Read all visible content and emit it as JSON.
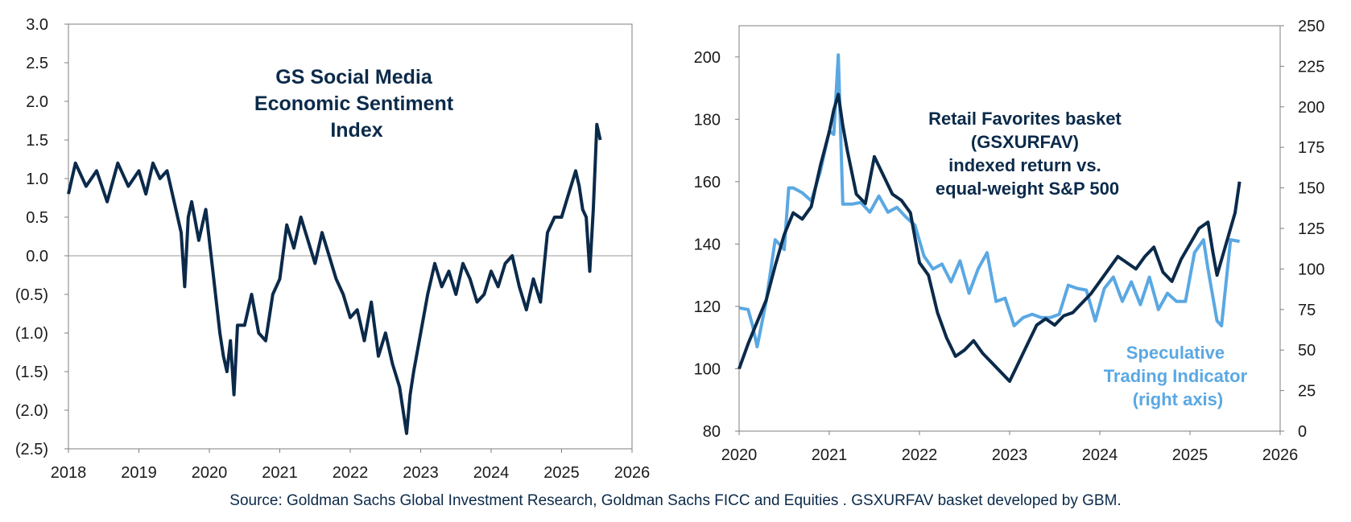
{
  "chart_data": [
    {
      "type": "line",
      "title": "",
      "annotation": [
        "GS Social Media",
        "Economic Sentiment",
        "Index"
      ],
      "x_tick_labels": [
        "2018",
        "2019",
        "2020",
        "2021",
        "2022",
        "2023",
        "2024",
        "2025",
        "2026"
      ],
      "y_tick_labels": [
        "3.0",
        "2.5",
        "2.0",
        "1.5",
        "1.0",
        "0.5",
        "0.0",
        "(0.5)",
        "(1.0)",
        "(1.5)",
        "(2.0)",
        "(2.5)"
      ],
      "xlim": [
        2018,
        2026
      ],
      "ylim": [
        -2.5,
        3.0
      ],
      "grid": false,
      "colors": {
        "series": "#0b2a4a",
        "zero_line": "#999999"
      },
      "series": [
        {
          "x": [
            2018.0,
            2018.1,
            2018.25,
            2018.4,
            2018.55,
            2018.7,
            2018.85,
            2019.0,
            2019.1,
            2019.2,
            2019.3,
            2019.4,
            2019.5,
            2019.6,
            2019.65,
            2019.7,
            2019.75,
            2019.85,
            2019.95,
            2020.05,
            2020.15,
            2020.2,
            2020.25,
            2020.3,
            2020.35,
            2020.4,
            2020.5,
            2020.6,
            2020.7,
            2020.8,
            2020.9,
            2021.0,
            2021.1,
            2021.2,
            2021.3,
            2021.4,
            2021.5,
            2021.6,
            2021.7,
            2021.8,
            2021.9,
            2022.0,
            2022.1,
            2022.2,
            2022.3,
            2022.4,
            2022.5,
            2022.6,
            2022.7,
            2022.75,
            2022.8,
            2022.85,
            2022.9,
            2023.0,
            2023.1,
            2023.2,
            2023.3,
            2023.4,
            2023.5,
            2023.6,
            2023.7,
            2023.8,
            2023.9,
            2024.0,
            2024.1,
            2024.2,
            2024.3,
            2024.4,
            2024.5,
            2024.6,
            2024.7,
            2024.8,
            2024.9,
            2025.0,
            2025.1,
            2025.2,
            2025.25,
            2025.3,
            2025.35,
            2025.4,
            2025.45,
            2025.5,
            2025.55
          ],
          "values": [
            0.8,
            1.2,
            0.9,
            1.1,
            0.7,
            1.2,
            0.9,
            1.1,
            0.8,
            1.2,
            1.0,
            1.1,
            0.7,
            0.3,
            -0.4,
            0.5,
            0.7,
            0.2,
            0.6,
            -0.2,
            -1.0,
            -1.3,
            -1.5,
            -1.1,
            -1.8,
            -0.9,
            -0.9,
            -0.5,
            -1.0,
            -1.1,
            -0.5,
            -0.3,
            0.4,
            0.1,
            0.5,
            0.2,
            -0.1,
            0.3,
            0.0,
            -0.3,
            -0.5,
            -0.8,
            -0.7,
            -1.1,
            -0.6,
            -1.3,
            -1.0,
            -1.4,
            -1.7,
            -2.0,
            -2.3,
            -1.8,
            -1.5,
            -1.0,
            -0.5,
            -0.1,
            -0.4,
            -0.2,
            -0.5,
            -0.1,
            -0.3,
            -0.6,
            -0.5,
            -0.2,
            -0.4,
            -0.1,
            0.0,
            -0.4,
            -0.7,
            -0.3,
            -0.6,
            0.3,
            0.5,
            0.5,
            0.8,
            1.1,
            0.9,
            0.6,
            0.5,
            -0.2,
            0.6,
            1.7,
            1.5
          ]
        }
      ]
    },
    {
      "type": "line",
      "title": "",
      "x_tick_labels": [
        "2020",
        "2021",
        "2022",
        "2023",
        "2024",
        "2025",
        "2026"
      ],
      "y_left_tick_labels": [
        "80",
        "100",
        "120",
        "140",
        "160",
        "180",
        "200"
      ],
      "y_right_tick_labels": [
        "0",
        "25",
        "50",
        "75",
        "100",
        "125",
        "150",
        "175",
        "200",
        "225",
        "250"
      ],
      "xlim": [
        2020,
        2026
      ],
      "ylim_left": [
        80,
        210
      ],
      "ylim_right": [
        0,
        250
      ],
      "grid": false,
      "annotations": [
        {
          "lines": [
            "Retail Favorites basket",
            "(GSXURFAV)",
            "indexed return vs.",
            "equal-weight S&P 500"
          ],
          "series": 0
        },
        {
          "lines": [
            "Speculative",
            "Trading Indicator",
            "(right axis)"
          ],
          "series": 1
        }
      ],
      "series": [
        {
          "axis": "left",
          "color": "#0b2a4a",
          "x": [
            2020.0,
            2020.1,
            2020.2,
            2020.3,
            2020.4,
            2020.5,
            2020.6,
            2020.7,
            2020.8,
            2020.9,
            2021.0,
            2021.05,
            2021.1,
            2021.15,
            2021.2,
            2021.3,
            2021.4,
            2021.5,
            2021.6,
            2021.7,
            2021.8,
            2021.9,
            2022.0,
            2022.1,
            2022.2,
            2022.3,
            2022.4,
            2022.5,
            2022.6,
            2022.7,
            2022.8,
            2022.9,
            2023.0,
            2023.1,
            2023.2,
            2023.3,
            2023.4,
            2023.5,
            2023.6,
            2023.7,
            2023.8,
            2023.9,
            2024.0,
            2024.1,
            2024.2,
            2024.3,
            2024.4,
            2024.5,
            2024.6,
            2024.7,
            2024.8,
            2024.9,
            2025.0,
            2025.1,
            2025.2,
            2025.25,
            2025.3,
            2025.4,
            2025.5,
            2025.55
          ],
          "values": [
            100,
            108,
            115,
            122,
            133,
            143,
            150,
            148,
            152,
            165,
            176,
            183,
            188,
            178,
            170,
            156,
            153,
            168,
            162,
            156,
            154,
            150,
            134,
            130,
            118,
            110,
            104,
            106,
            109,
            105,
            102,
            99,
            96,
            102,
            108,
            114,
            116,
            114,
            117,
            118,
            121,
            124,
            128,
            132,
            136,
            134,
            132,
            136,
            139,
            131,
            128,
            135,
            140,
            145,
            147,
            138,
            130,
            140,
            150,
            160
          ]
        },
        {
          "axis": "right",
          "color": "#5aa8e3",
          "x": [
            2020.0,
            2020.1,
            2020.15,
            2020.2,
            2020.3,
            2020.4,
            2020.5,
            2020.55,
            2020.6,
            2020.7,
            2020.8,
            2020.9,
            2021.0,
            2021.05,
            2021.1,
            2021.15,
            2021.25,
            2021.35,
            2021.45,
            2021.55,
            2021.65,
            2021.75,
            2021.85,
            2021.95,
            2022.05,
            2022.15,
            2022.25,
            2022.35,
            2022.45,
            2022.55,
            2022.65,
            2022.75,
            2022.85,
            2022.95,
            2023.05,
            2023.15,
            2023.25,
            2023.35,
            2023.45,
            2023.55,
            2023.65,
            2023.75,
            2023.85,
            2023.95,
            2024.05,
            2024.15,
            2024.25,
            2024.35,
            2024.45,
            2024.55,
            2024.65,
            2024.75,
            2024.85,
            2024.95,
            2025.05,
            2025.15,
            2025.2,
            2025.3,
            2025.35,
            2025.45,
            2025.55
          ],
          "values": [
            76,
            75,
            65,
            52,
            80,
            118,
            112,
            150,
            150,
            147,
            142,
            160,
            185,
            183,
            232,
            140,
            140,
            141,
            135,
            145,
            135,
            138,
            132,
            127,
            108,
            100,
            103,
            92,
            105,
            85,
            100,
            110,
            80,
            82,
            65,
            70,
            72,
            70,
            70,
            72,
            90,
            88,
            87,
            68,
            88,
            95,
            80,
            92,
            78,
            95,
            75,
            85,
            80,
            80,
            110,
            118,
            100,
            68,
            65,
            118,
            117
          ]
        }
      ]
    }
  ],
  "source_note": "Source: Goldman Sachs Global Investment Research, Goldman Sachs FICC and Equities . GSXURFAV basket developed by GBM."
}
